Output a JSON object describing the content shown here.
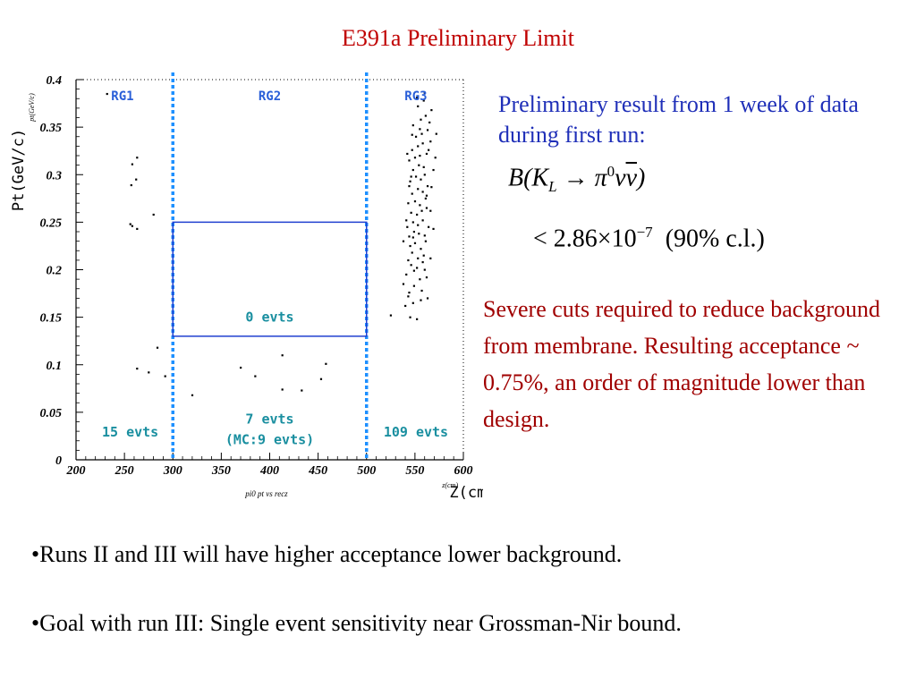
{
  "slide": {
    "title": "E391a Preliminary Limit",
    "result_text": "Preliminary result from 1 week of data during first run:",
    "formula": {
      "b": "B",
      "open": "(",
      "k": "K",
      "k_sub": "L",
      "arrow": " → ",
      "pi": "π",
      "pi_sup": "0",
      "nu": "ν",
      "nubar": "ν",
      "close": ")"
    },
    "limit": {
      "lt": "< 2.86×10",
      "exp": "−7",
      "cl": "  (90% c.l.)"
    },
    "cuts_text": "Severe cuts required to reduce background from membrane. Resulting acceptance ~ 0.75%, an order of magnitude lower than design.",
    "bullets": [
      "•Runs II and III will have higher acceptance lower background.",
      "•Goal with run III: Single event sensitivity near Grossman-Nir bound."
    ]
  },
  "chart_data": {
    "type": "scatter",
    "title": "",
    "xlabel": "Z(cm)",
    "ylabel": "Pt(GeV/c)",
    "xlabel_small": "z(cm)",
    "ylabel_small": "pt(GeV/c)",
    "footer": "pi0 pt vs recz",
    "xlim": [
      200,
      600
    ],
    "ylim": [
      0,
      0.4
    ],
    "xticks": [
      "200",
      "250",
      "300",
      "350",
      "400",
      "450",
      "500",
      "550",
      "600"
    ],
    "yticks": [
      "0",
      "0.05",
      "0.1",
      "0.15",
      "0.2",
      "0.25",
      "0.3",
      "0.35",
      "0.4"
    ],
    "region_lines_x": [
      300,
      500
    ],
    "colors": {
      "region_line": "#1e90ff",
      "signal_box": "#2040d0",
      "region_text": "#1a8fa0",
      "region_header": "#2a5fd8",
      "points": "#000000"
    },
    "signal_box": {
      "x": [
        300,
        500
      ],
      "y": [
        0.13,
        0.25
      ]
    },
    "regions": [
      {
        "name": "RG1",
        "x": 248,
        "y": 0.382
      },
      {
        "name": "RG2",
        "x": 400,
        "y": 0.382
      },
      {
        "name": "RG3",
        "x": 551,
        "y": 0.382
      }
    ],
    "annotations": [
      {
        "text": "0 evts",
        "x": 400,
        "y": 0.15
      },
      {
        "text": "15 evts",
        "x": 256,
        "y": 0.029
      },
      {
        "text": "7 evts",
        "x": 400,
        "y": 0.043
      },
      {
        "text": "(MC:9 evts)",
        "x": 400,
        "y": 0.021
      },
      {
        "text": "109 evts",
        "x": 551,
        "y": 0.029
      }
    ],
    "points": [
      [
        232,
        0.385
      ],
      [
        258,
        0.311
      ],
      [
        263,
        0.318
      ],
      [
        257,
        0.289
      ],
      [
        262,
        0.295
      ],
      [
        256,
        0.248
      ],
      [
        258,
        0.246
      ],
      [
        263,
        0.243
      ],
      [
        280,
        0.258
      ],
      [
        284,
        0.118
      ],
      [
        263,
        0.096
      ],
      [
        275,
        0.092
      ],
      [
        292,
        0.088
      ],
      [
        370,
        0.097
      ],
      [
        320,
        0.068
      ],
      [
        385,
        0.088
      ],
      [
        413,
        0.11
      ],
      [
        413,
        0.074
      ],
      [
        433,
        0.073
      ],
      [
        453,
        0.085
      ],
      [
        458,
        0.101
      ],
      [
        525,
        0.152
      ],
      [
        545,
        0.15
      ],
      [
        552,
        0.148
      ],
      [
        538,
        0.185
      ],
      [
        543,
        0.172
      ],
      [
        548,
        0.165
      ],
      [
        556,
        0.168
      ],
      [
        541,
        0.195
      ],
      [
        549,
        0.199
      ],
      [
        555,
        0.19
      ],
      [
        560,
        0.2
      ],
      [
        543,
        0.21
      ],
      [
        547,
        0.218
      ],
      [
        553,
        0.212
      ],
      [
        559,
        0.215
      ],
      [
        545,
        0.225
      ],
      [
        550,
        0.228
      ],
      [
        556,
        0.222
      ],
      [
        561,
        0.23
      ],
      [
        544,
        0.235
      ],
      [
        549,
        0.24
      ],
      [
        554,
        0.238
      ],
      [
        560,
        0.236
      ],
      [
        542,
        0.245
      ],
      [
        548,
        0.25
      ],
      [
        553,
        0.247
      ],
      [
        558,
        0.252
      ],
      [
        546,
        0.26
      ],
      [
        552,
        0.258
      ],
      [
        557,
        0.262
      ],
      [
        562,
        0.265
      ],
      [
        543,
        0.27
      ],
      [
        550,
        0.272
      ],
      [
        555,
        0.268
      ],
      [
        561,
        0.275
      ],
      [
        547,
        0.28
      ],
      [
        553,
        0.285
      ],
      [
        558,
        0.282
      ],
      [
        563,
        0.288
      ],
      [
        545,
        0.293
      ],
      [
        551,
        0.298
      ],
      [
        556,
        0.295
      ],
      [
        560,
        0.3
      ],
      [
        548,
        0.305
      ],
      [
        554,
        0.31
      ],
      [
        559,
        0.308
      ],
      [
        544,
        0.315
      ],
      [
        550,
        0.318
      ],
      [
        555,
        0.32
      ],
      [
        562,
        0.322
      ],
      [
        547,
        0.326
      ],
      [
        553,
        0.33
      ],
      [
        558,
        0.333
      ],
      [
        566,
        0.335
      ],
      [
        551,
        0.34
      ],
      [
        557,
        0.343
      ],
      [
        563,
        0.347
      ],
      [
        548,
        0.352
      ],
      [
        572,
        0.343
      ],
      [
        556,
        0.358
      ],
      [
        561,
        0.362
      ],
      [
        567,
        0.368
      ],
      [
        553,
        0.372
      ],
      [
        559,
        0.378
      ],
      [
        565,
        0.355
      ],
      [
        546,
        0.298
      ],
      [
        562,
        0.278
      ],
      [
        544,
        0.288
      ],
      [
        566,
        0.262
      ],
      [
        549,
        0.183
      ],
      [
        557,
        0.178
      ],
      [
        562,
        0.192
      ],
      [
        546,
        0.205
      ],
      [
        552,
        0.202
      ],
      [
        558,
        0.208
      ],
      [
        564,
        0.245
      ],
      [
        541,
        0.252
      ],
      [
        569,
        0.305
      ],
      [
        567,
        0.287
      ],
      [
        564,
        0.326
      ],
      [
        542,
        0.322
      ],
      [
        571,
        0.318
      ],
      [
        547,
        0.342
      ],
      [
        555,
        0.348
      ],
      [
        552,
        0.381
      ],
      [
        560,
        0.386
      ],
      [
        548,
        0.234
      ],
      [
        566,
        0.212
      ],
      [
        544,
        0.176
      ],
      [
        538,
        0.23
      ],
      [
        569,
        0.243
      ],
      [
        540,
        0.162
      ],
      [
        563,
        0.17
      ]
    ]
  }
}
